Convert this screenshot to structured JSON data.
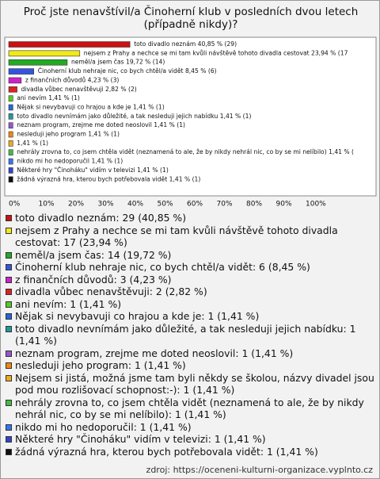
{
  "chart_data": {
    "type": "bar",
    "title": "Proč jste nenavštívil/a Činoherní klub v posledních dvou letech (případně nikdy)?",
    "categories": [
      "toto divadlo neznám",
      "nejsem z Prahy a nechce se mi tam kvůli návštěvě tohoto divadla cestovat",
      "neměl/a jsem čas",
      "Činoherní klub nehraje nic, co bych chtěl/a vidět",
      "z finančních důvodů",
      "divadla vůbec nenavštěvuji",
      "ani nevím",
      "Nějak si nevybavuji co hrajou a kde je",
      "toto divadlo nevnímám jako důležité, a tak nesleduji jejich nabídku",
      "neznam program, zrejme me doted neoslovil",
      "nesleduji jeho program",
      null,
      "nehrály zrovna to, co jsem chtěla vidět (neznamená to ale, že by nikdy nehrál nic, co by se mi nelíbilo)",
      "nikdo mi ho nedoporučil",
      "Některé hry \"Činoháku\" vidím v televizi",
      "žádná výrazná hra, kterou bych potřebovala vidět"
    ],
    "values": [
      40.85,
      23.94,
      19.72,
      8.45,
      4.23,
      2.82,
      1.41,
      1.41,
      1.41,
      1.41,
      1.41,
      1.41,
      1.41,
      1.41,
      1.41,
      1.41
    ],
    "value_labels": [
      "40,85 % (29)",
      "23,94 % (17",
      "19,72 % (14)",
      "8,45 % (6)",
      "4,23 % (3)",
      "2,82 % (2)",
      "1,41 % (1)",
      "1,41 % (1)",
      "1,41 % (1)",
      "1,41 % (1)",
      "1,41 % (1)",
      "1,41 % (1)",
      "1,41 % (",
      "1,41 % (1)",
      "1,41 % (1)",
      "1,41 % (1)"
    ],
    "colors": [
      "#cc1111",
      "#f2e81a",
      "#22aa22",
      "#3355dd",
      "#cc22cc",
      "#dd2222",
      "#55cc22",
      "#2266dd",
      "#229999",
      "#9955cc",
      "#ee8811",
      "#eeaa22",
      "#44bb44",
      "#3377ee",
      "#3344cc",
      "#111111"
    ],
    "xlim": [
      0,
      100
    ],
    "xticks": [
      {
        "value": 0,
        "label": "0%"
      },
      {
        "value": 10,
        "label": "10%"
      },
      {
        "value": 20,
        "label": "20%"
      },
      {
        "value": 30,
        "label": "30%"
      },
      {
        "value": 40,
        "label": "40%"
      },
      {
        "value": 50,
        "label": "50%"
      },
      {
        "value": 60,
        "label": "60%"
      },
      {
        "value": 70,
        "label": "70%"
      },
      {
        "value": 80,
        "label": "80%"
      },
      {
        "value": 90,
        "label": "90%"
      },
      {
        "value": 100,
        "label": "100%"
      }
    ],
    "legend": [
      "toto divadlo neznám: 29 (40,85 %)",
      "nejsem z Prahy a nechce se mi tam kvůli návštěvě tohoto divadla cestovat: 17 (23,94 %)",
      "neměl/a jsem čas: 14 (19,72 %)",
      "Činoherní klub nehraje nic, co bych chtěl/a vidět: 6 (8,45 %)",
      "z finančních důvodů: 3 (4,23 %)",
      "divadla vůbec nenavštěvuji: 2 (2,82 %)",
      "ani nevím: 1 (1,41 %)",
      "Nějak si nevybavuji co hrajou a kde je: 1 (1,41 %)",
      "toto divadlo nevnímám jako důležité, a tak nesleduji jejich nabídku: 1 (1,41 %)",
      "neznam program, zrejme me doted neoslovil: 1 (1,41 %)",
      "nesleduji jeho program: 1 (1,41 %)",
      "Nejsem si jistá, možná jsme tam byli někdy se školou, názvy divadel jsou pod mou rozlišovací schopnost:-): 1 (1,41 %)",
      "nehrály zrovna to, co jsem chtěla vidět (neznamená to ale, že by nikdy nehrál nic, co by se mi nelíbilo): 1 (1,41 %)",
      "nikdo mi ho nedoporučil: 1 (1,41 %)",
      "Některé hry \"Činoháku\" vidím v televizi: 1 (1,41 %)",
      "žádná výrazná hra, kterou bych potřebovala vidět: 1 (1,41 %)"
    ],
    "source": "zdroj: https://oceneni-kulturni-organizace.vyplnto.cz"
  }
}
